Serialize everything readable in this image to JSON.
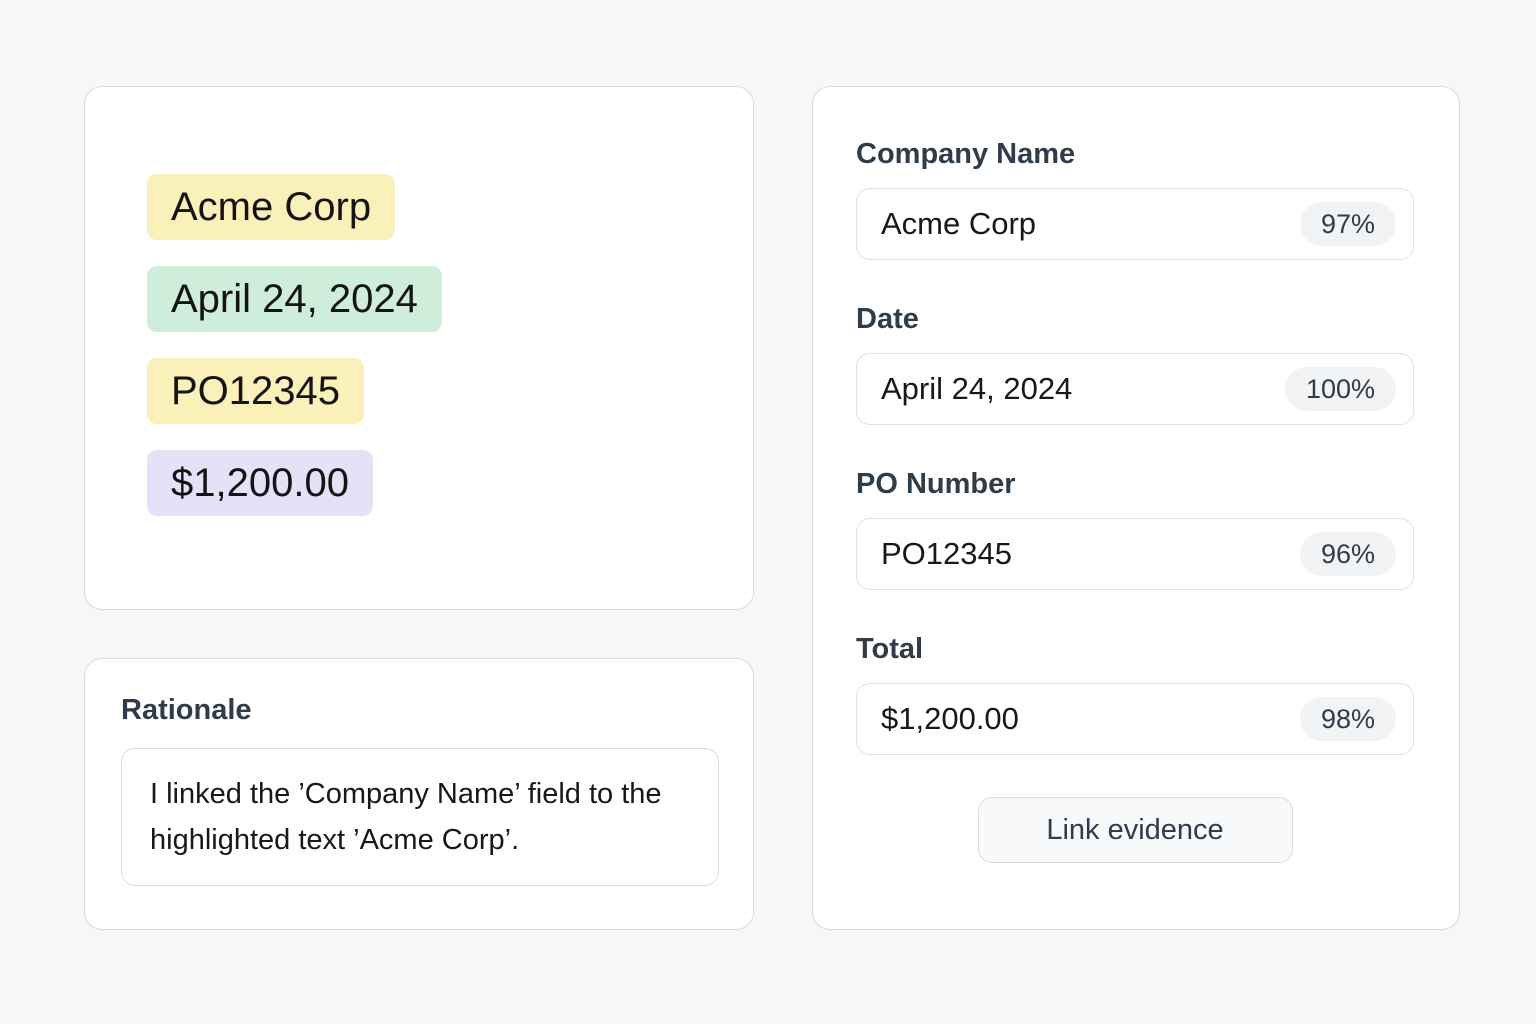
{
  "page": {
    "background_color": "#F7F7F8",
    "card_border_color": "#D9DBDD"
  },
  "evidence_panel": {
    "highlights": [
      {
        "text": "Acme Corp",
        "field": "Company Name",
        "color": "#FAF0BA"
      },
      {
        "text": "April 24, 2024",
        "field": "Date",
        "color": "#CFEDDB"
      },
      {
        "text": "PO12345",
        "field": "PO Number",
        "color": "#FAF0BA"
      },
      {
        "text": "$1,200.00",
        "field": "Total",
        "color": "#E5E2F7"
      }
    ]
  },
  "rationale_panel": {
    "label": "Rationale",
    "text": "I linked the ’Company Name’ field to the highlighted text ’Acme Corp’."
  },
  "form_panel": {
    "fields": [
      {
        "label": "Company Name",
        "value": "Acme Corp",
        "confidence": "97%"
      },
      {
        "label": "Date",
        "value": "April 24, 2024",
        "confidence": "100%"
      },
      {
        "label": "PO Number",
        "value": "PO12345",
        "confidence": "96%"
      },
      {
        "label": "Total",
        "value": "$1,200.00",
        "confidence": "98%"
      }
    ],
    "button_label": "Link evidence",
    "badge_background": "#F2F3F5"
  }
}
